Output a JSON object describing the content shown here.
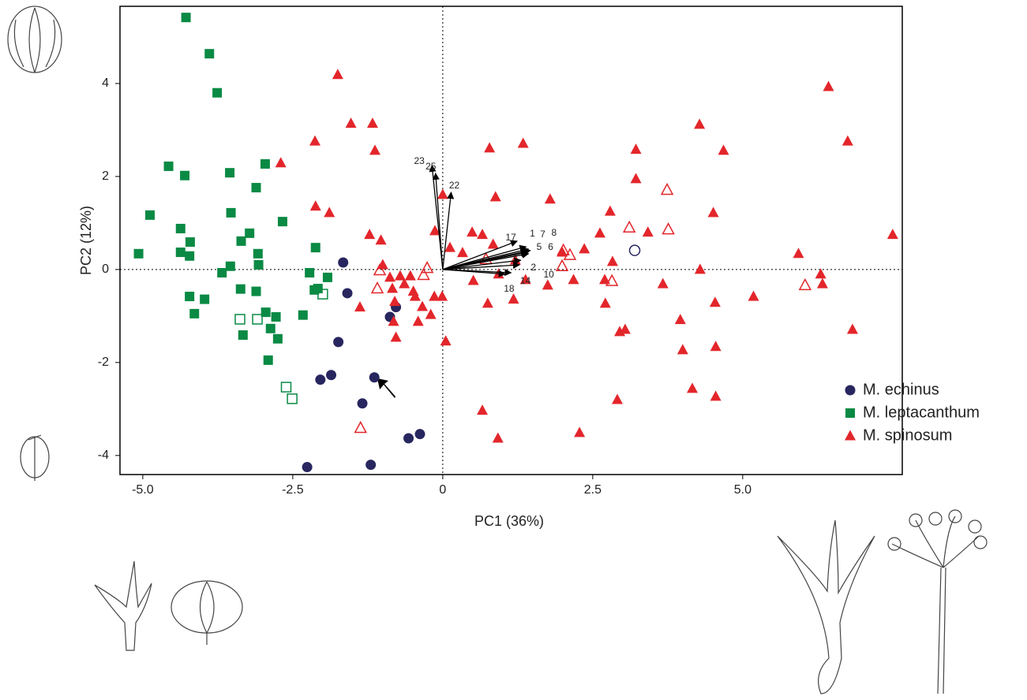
{
  "chart_data": {
    "type": "scatter",
    "x_label": "PC1 (36%)",
    "y_label": "PC2 (12%)",
    "xlim": [
      -5.38,
      7.66
    ],
    "ylim": [
      -4.41,
      5.66
    ],
    "xticks": [
      {
        "value": -5,
        "label": "-5.0"
      },
      {
        "value": -2.5,
        "label": "-2.5"
      },
      0,
      {
        "value": 2.5,
        "label": "2.5"
      },
      {
        "value": 5,
        "label": "5.0"
      }
    ],
    "yticks": [
      -4,
      -2,
      0,
      2,
      4
    ],
    "legend": "right",
    "series": [
      {
        "name": "M. echinus",
        "color": "#27265f",
        "marker": "circle",
        "x": [
          -1.66,
          -1.59,
          -1.74,
          -0.78,
          -0.88,
          -1.86,
          -2.04,
          -1.14,
          -1.34,
          -2.26,
          -1.2,
          -0.57,
          -0.38
        ],
        "y": [
          0.15,
          -0.51,
          -1.56,
          -0.81,
          -1.02,
          -2.27,
          -2.37,
          -2.32,
          -2.88,
          -4.25,
          -4.2,
          -3.63,
          -3.54
        ],
        "x_open": [
          3.2
        ],
        "y_open": [
          0.41
        ]
      },
      {
        "name": "M. leptacanthum",
        "color": "#0a8a44",
        "marker": "square",
        "x": [
          -4.28,
          -3.89,
          -3.76,
          -4.57,
          -4.3,
          -2.96,
          -3.55,
          -3.11,
          -4.88,
          -5.07,
          -4.37,
          -4.21,
          -4.22,
          -3.53,
          -3.22,
          -3.36,
          -3.08,
          -3.07,
          -2.67,
          -4.37,
          -3.54,
          -3.68,
          -3.37,
          -3.11,
          -4.22,
          -3.97,
          -4.14,
          -2.95,
          -3.33,
          -2.78,
          -2.87,
          -2.75,
          -2.91,
          -2.12,
          -2.22,
          -2.14,
          -2.08,
          -1.92,
          -2.33
        ],
        "y": [
          5.42,
          4.64,
          3.8,
          2.22,
          2.02,
          2.27,
          2.08,
          1.76,
          1.17,
          0.34,
          0.88,
          0.59,
          0.29,
          1.22,
          0.78,
          0.61,
          0.34,
          0.1,
          1.03,
          0.37,
          0.07,
          -0.07,
          -0.42,
          -0.47,
          -0.58,
          -0.64,
          -0.95,
          -0.92,
          -1.41,
          -1.02,
          -1.27,
          -1.49,
          -1.95,
          0.47,
          -0.07,
          -0.44,
          -0.41,
          -0.17,
          -0.98
        ],
        "x_open": [
          -2.0,
          -3.38,
          -3.09,
          -2.61,
          -2.51
        ],
        "y_open": [
          -0.53,
          -1.07,
          -1.07,
          -2.53,
          -2.78
        ]
      },
      {
        "name": "M. spinosum",
        "color": "#e3262b",
        "marker": "triangle",
        "x": [
          -1.75,
          -1.53,
          -1.17,
          -1.13,
          -2.13,
          -2.7,
          -2.12,
          -1.89,
          -1.22,
          -1.0,
          -0.88,
          -0.71,
          -1.38,
          -0.8,
          -0.82,
          -0.78,
          -0.54,
          -0.84,
          -0.46,
          -0.41,
          -0.2,
          -0.14,
          -0.01,
          0.05,
          -0.13,
          0.0,
          0.12,
          0.78,
          1.34,
          0.88,
          0.49,
          0.66,
          0.84,
          0.33,
          0.51,
          0.75,
          0.93,
          1.18,
          1.21,
          1.38,
          1.75,
          1.79,
          1.99,
          2.18,
          2.36,
          2.62,
          2.7,
          2.71,
          2.79,
          2.83,
          3.04,
          2.95,
          3.22,
          3.22,
          3.42,
          3.67,
          3.96,
          4.0,
          4.28,
          4.29,
          4.51,
          4.54,
          4.16,
          4.55,
          4.55,
          6.43,
          6.75,
          4.68,
          6.3,
          6.33,
          6.83,
          7.5,
          5.93,
          5.18,
          0.66,
          0.92,
          2.28,
          2.91,
          -0.34,
          -0.64,
          -1.03,
          -0.49
        ],
        "y": [
          4.19,
          3.14,
          3.14,
          2.56,
          2.76,
          2.29,
          1.36,
          1.22,
          0.75,
          0.1,
          -0.17,
          -0.14,
          -0.81,
          -0.69,
          -1.12,
          -1.46,
          -0.14,
          -0.41,
          -0.58,
          -1.12,
          -0.97,
          -0.58,
          -0.58,
          -1.54,
          0.83,
          1.61,
          0.47,
          2.61,
          2.71,
          1.56,
          0.8,
          0.75,
          0.54,
          0.36,
          -0.24,
          -0.73,
          -0.1,
          -0.64,
          0.2,
          -0.22,
          -0.34,
          1.51,
          0.37,
          -0.22,
          0.44,
          0.78,
          -0.22,
          -0.73,
          1.25,
          0.17,
          -1.29,
          -1.34,
          2.58,
          1.95,
          0.8,
          -0.31,
          -1.08,
          -1.73,
          3.12,
          0.0,
          1.22,
          -0.71,
          -2.56,
          -1.66,
          -2.73,
          3.93,
          2.76,
          2.56,
          -0.1,
          -0.31,
          -1.29,
          0.75,
          0.34,
          -0.58,
          -3.03,
          -3.63,
          -3.51,
          -2.8,
          -0.8,
          -0.31,
          0.63,
          -0.47
        ],
        "x_open": [
          -1.05,
          -1.09,
          -0.26,
          -0.32,
          0.72,
          2.01,
          2.12,
          1.99,
          2.82,
          3.11,
          3.74,
          3.76,
          6.04,
          -1.37
        ],
        "y_open": [
          -0.02,
          -0.41,
          0.03,
          -0.12,
          0.22,
          0.41,
          0.31,
          0.07,
          -0.25,
          0.9,
          1.71,
          0.86,
          -0.34,
          -3.41
        ]
      }
    ],
    "loadings": [
      {
        "label": "23",
        "x": -0.18,
        "y": 2.24
      },
      {
        "label": "25",
        "x": -0.12,
        "y": 2.07
      },
      {
        "label": "22",
        "x": 0.14,
        "y": 1.66
      },
      {
        "label": "17",
        "x": 1.24,
        "y": 0.61
      },
      {
        "label": "1",
        "x": 1.39,
        "y": 0.49
      },
      {
        "label": "7",
        "x": 1.43,
        "y": 0.44
      },
      {
        "label": "8",
        "x": 1.46,
        "y": 0.41
      },
      {
        "label": "5",
        "x": 1.41,
        "y": 0.37
      },
      {
        "label": "6",
        "x": 1.43,
        "y": 0.34
      },
      {
        "label": "2",
        "x": 1.3,
        "y": 0.2
      },
      {
        "label": "10",
        "x": 1.28,
        "y": 0.1
      },
      {
        "label": "18",
        "x": 1.04,
        "y": -0.1
      },
      {
        "label": "14",
        "x": 1.14,
        "y": -0.07
      }
    ]
  }
}
